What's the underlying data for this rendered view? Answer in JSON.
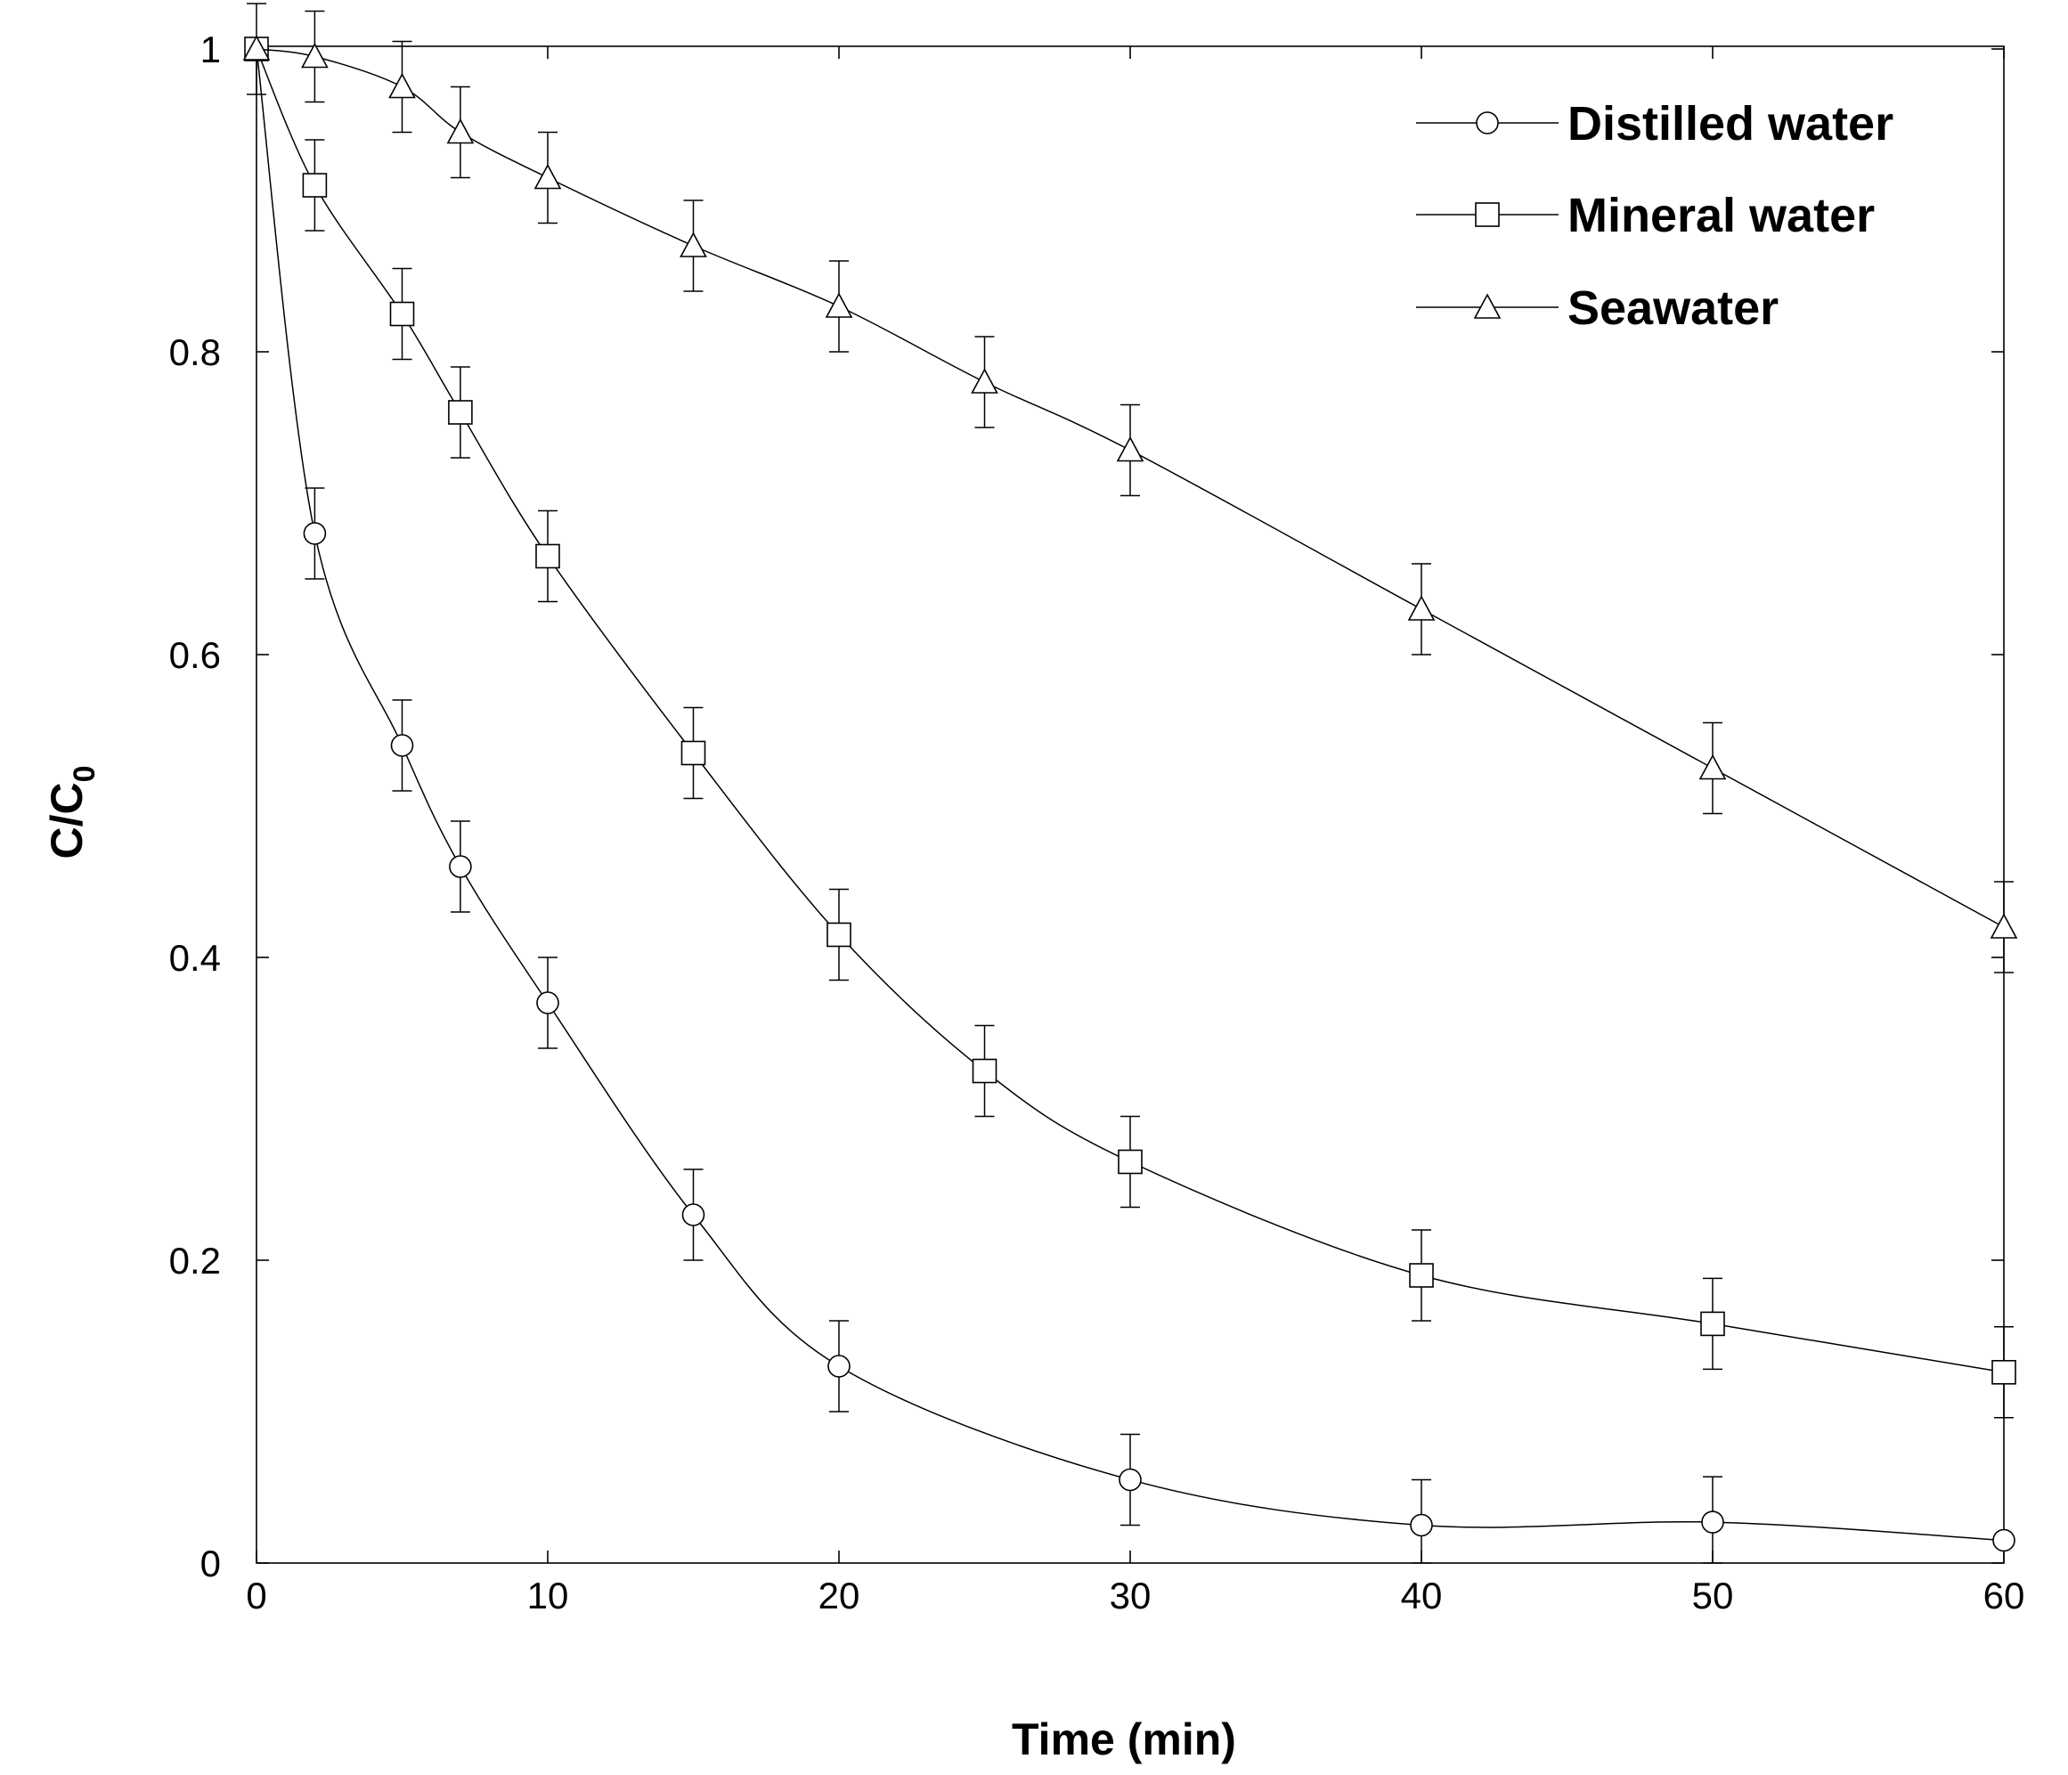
{
  "chart_data": {
    "type": "line",
    "title": "",
    "xlabel": "Time (min)",
    "ylabel_main": "C/C",
    "ylabel_sub": "0",
    "xlim": [
      0,
      60
    ],
    "ylim": [
      0,
      1
    ],
    "xticks": [
      0,
      10,
      20,
      30,
      40,
      50,
      60
    ],
    "xtick_labels": [
      "0",
      "10",
      "20",
      "30",
      "40",
      "50",
      "60"
    ],
    "yticks": [
      0,
      0.2,
      0.4,
      0.6,
      0.8,
      1
    ],
    "ytick_labels": [
      "0",
      "0.2",
      "0.4",
      "0.6",
      "0.8",
      "1"
    ],
    "grid": false,
    "legend_position": "top-right",
    "series": [
      {
        "name": "Distilled water",
        "marker": "circle",
        "x": [
          0,
          2,
          5,
          7,
          10,
          15,
          20,
          30,
          40,
          50,
          60
        ],
        "y": [
          1.0,
          0.68,
          0.54,
          0.46,
          0.37,
          0.23,
          0.13,
          0.055,
          0.025,
          0.027,
          0.015
        ],
        "error": [
          0.03,
          0.03,
          0.03,
          0.03,
          0.03,
          0.03,
          0.03,
          0.03,
          0.03,
          0.03,
          0.0
        ]
      },
      {
        "name": "Mineral water",
        "marker": "square",
        "x": [
          0,
          2,
          5,
          7,
          10,
          15,
          20,
          25,
          30,
          40,
          50,
          60
        ],
        "y": [
          1.0,
          0.91,
          0.825,
          0.76,
          0.665,
          0.535,
          0.415,
          0.325,
          0.265,
          0.19,
          0.158,
          0.126
        ],
        "error": [
          0.0,
          0.03,
          0.03,
          0.03,
          0.03,
          0.03,
          0.03,
          0.03,
          0.03,
          0.03,
          0.03,
          0.03
        ]
      },
      {
        "name": "Seawater",
        "marker": "triangle",
        "x": [
          0,
          2,
          5,
          7,
          10,
          15,
          20,
          25,
          30,
          40,
          50,
          60
        ],
        "y": [
          1.0,
          0.995,
          0.975,
          0.945,
          0.915,
          0.87,
          0.83,
          0.78,
          0.735,
          0.63,
          0.525,
          0.42
        ],
        "error": [
          0.0,
          0.03,
          0.03,
          0.03,
          0.03,
          0.03,
          0.03,
          0.03,
          0.03,
          0.03,
          0.03,
          0.03
        ]
      }
    ]
  }
}
